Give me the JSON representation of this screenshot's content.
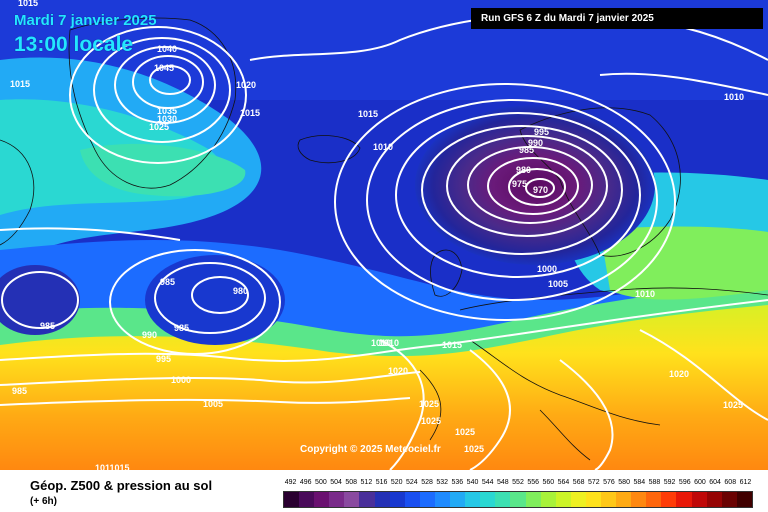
{
  "header": {
    "date_label": "Mardi 7 janvier 2025",
    "time_label": "13:00 locale",
    "run_label": "Run GFS 6 Z du Mardi 7 janvier 2025"
  },
  "copyright": "Copyright © 2025 Meteociel.fr",
  "legend": {
    "title": "Géop. Z500 & pression au sol",
    "subtitle": "(+ 6h)",
    "values": [
      "492",
      "496",
      "500",
      "504",
      "508",
      "512",
      "516",
      "520",
      "524",
      "528",
      "532",
      "536",
      "540",
      "544",
      "548",
      "552",
      "556",
      "560",
      "564",
      "568",
      "572",
      "576",
      "580",
      "584",
      "588",
      "592",
      "596",
      "600",
      "604",
      "608",
      "612"
    ],
    "colors": [
      "#2a0030",
      "#4a0a5a",
      "#6a1070",
      "#7a2b8a",
      "#8a4aa0",
      "#4a2f9a",
      "#2430b5",
      "#1838cf",
      "#1a4ff0",
      "#1c6cff",
      "#1f8bff",
      "#22aaf5",
      "#26c8e6",
      "#2ad8d2",
      "#3ce0b2",
      "#5ae68a",
      "#80ee5c",
      "#a8f23a",
      "#ccf428",
      "#eef022",
      "#ffe21c",
      "#ffc818",
      "#ffaa14",
      "#ff8810",
      "#ff660c",
      "#ff3c08",
      "#e81808",
      "#c00808",
      "#960404",
      "#6a0202",
      "#400000"
    ]
  },
  "map": {
    "isobar_labels": [
      {
        "text": "1015",
        "id": "iso-1015-a"
      },
      {
        "text": "1040",
        "id": "iso-1040"
      },
      {
        "text": "1045",
        "id": "iso-1045"
      },
      {
        "text": "1020",
        "id": "iso-1020-a"
      },
      {
        "text": "1015",
        "id": "iso-1015-b"
      },
      {
        "text": "1035",
        "id": "iso-1035"
      },
      {
        "text": "1030",
        "id": "iso-1030"
      },
      {
        "text": "1025",
        "id": "iso-1025-a"
      },
      {
        "text": "1015",
        "id": "iso-1015-c"
      },
      {
        "text": "1015",
        "id": "iso-1015-d"
      },
      {
        "text": "1010",
        "id": "iso-1010-a"
      },
      {
        "text": "995",
        "id": "iso-995-a"
      },
      {
        "text": "990",
        "id": "iso-990-a"
      },
      {
        "text": "985",
        "id": "iso-985-a"
      },
      {
        "text": "980",
        "id": "iso-980-a"
      },
      {
        "text": "975",
        "id": "iso-975"
      },
      {
        "text": "970",
        "id": "iso-970"
      },
      {
        "text": "1000",
        "id": "iso-1000-a"
      },
      {
        "text": "1005",
        "id": "iso-1005-a"
      },
      {
        "text": "1010",
        "id": "iso-1010-b"
      },
      {
        "text": "1010",
        "id": "iso-1010-c"
      },
      {
        "text": "985",
        "id": "iso-985-b"
      },
      {
        "text": "980",
        "id": "iso-980-b"
      },
      {
        "text": "985",
        "id": "iso-985-c"
      },
      {
        "text": "985",
        "id": "iso-985-d"
      },
      {
        "text": "990",
        "id": "iso-990-b"
      },
      {
        "text": "995",
        "id": "iso-995-b"
      },
      {
        "text": "1000",
        "id": "iso-1000-b"
      },
      {
        "text": "1005",
        "id": "iso-1005-b"
      },
      {
        "text": "985",
        "id": "iso-985-e"
      },
      {
        "text": "1010",
        "id": "iso-1010-d"
      },
      {
        "text": "1015",
        "id": "iso-1015-e"
      },
      {
        "text": "1020",
        "id": "iso-1020-b"
      },
      {
        "text": "1025",
        "id": "iso-1025-b"
      },
      {
        "text": "1025",
        "id": "iso-1025-c"
      },
      {
        "text": "1025",
        "id": "iso-1025-d"
      },
      {
        "text": "1025",
        "id": "iso-1025-e"
      },
      {
        "text": "1020",
        "id": "iso-1020-c"
      },
      {
        "text": "1025",
        "id": "iso-1025-f"
      },
      {
        "text": "1010",
        "id": "iso-1010-e"
      },
      {
        "text": "1011015",
        "id": "iso-1011015"
      }
    ]
  }
}
